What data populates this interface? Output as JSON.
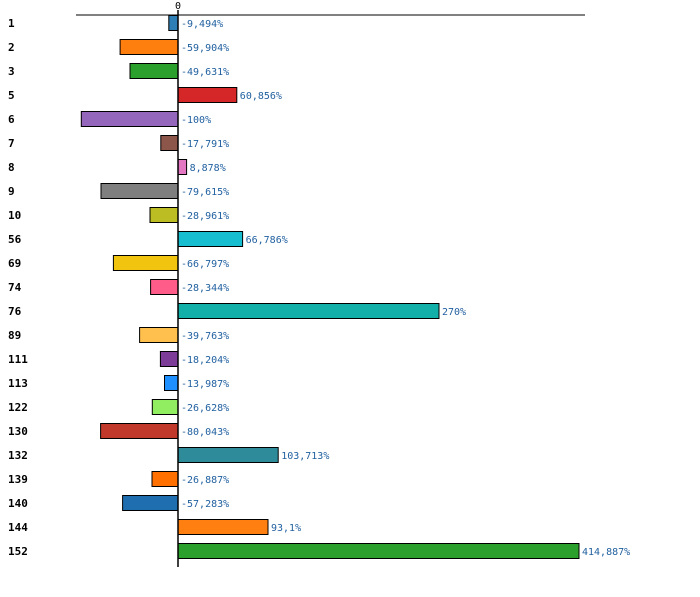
{
  "chart_data": {
    "type": "bar",
    "orientation": "horizontal",
    "title": "",
    "xlabel": "",
    "ylabel": "",
    "zero_tick": "0",
    "categories": [
      "1",
      "2",
      "3",
      "5",
      "6",
      "7",
      "8",
      "9",
      "10",
      "56",
      "69",
      "74",
      "76",
      "89",
      "111",
      "113",
      "122",
      "130",
      "132",
      "139",
      "140",
      "144",
      "152"
    ],
    "values": [
      -9.494,
      -59.904,
      -49.631,
      60.856,
      -100,
      -17.791,
      8.878,
      -79.615,
      -28.961,
      66.786,
      -66.797,
      -28.344,
      270,
      -39.763,
      -18.204,
      -13.987,
      -26.628,
      -80.043,
      103.713,
      -26.887,
      -57.283,
      93.1,
      414.887
    ],
    "value_labels": [
      "-9,494%",
      "-59,904%",
      "-49,631%",
      "60,856%",
      "-100%",
      "-17,791%",
      "8,878%",
      "-79,615%",
      "-28,961%",
      "66,786%",
      "-66,797%",
      "-28,344%",
      "270%",
      "-39,763%",
      "-18,204%",
      "-13,987%",
      "-26,628%",
      "-80,043%",
      "103,713%",
      "-26,887%",
      "-57,283%",
      "93,1%",
      "414,887%"
    ],
    "colors": [
      "#2f7fb7",
      "#ff7f0e",
      "#2ca02c",
      "#d62728",
      "#9467bd",
      "#8c564b",
      "#e377c2",
      "#7f7f7f",
      "#bcbd22",
      "#17becf",
      "#f1c40f",
      "#ff5c8a",
      "#12b0a8",
      "#ffc04d",
      "#7d3c98",
      "#1e90ff",
      "#90ee60",
      "#c0392b",
      "#2e8b9a",
      "#ff7000",
      "#1f6fb0",
      "#ff8010",
      "#2ca02c"
    ],
    "value_label_color": "#1f5f9f",
    "xlim": [
      -100,
      414.887
    ],
    "grid": false,
    "legend": "none"
  }
}
